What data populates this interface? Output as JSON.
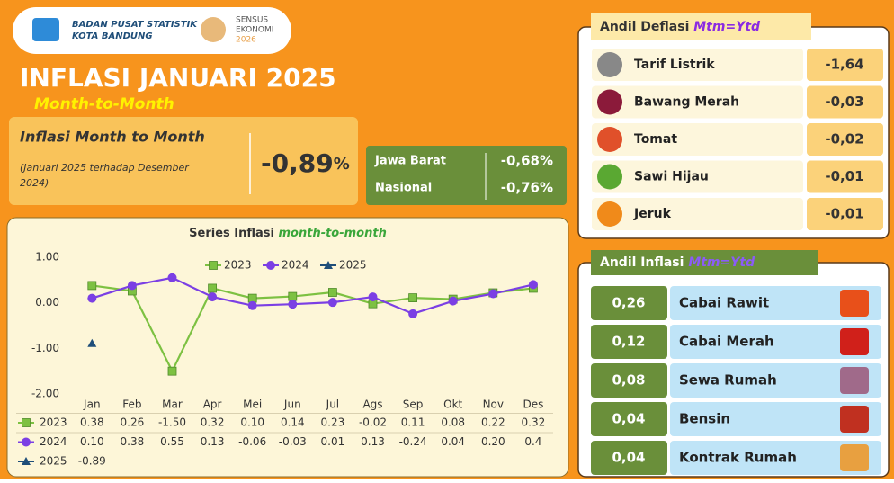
{
  "header": {
    "org": "BADAN PUSAT STATISTIK",
    "city": "KOTA BANDUNG",
    "census_1": "SENSUS",
    "census_2": "EKONOMI",
    "census_3": "2026"
  },
  "title": "INFLASI JANUARI 2025",
  "subtitle": "Month-to-Month",
  "mtm": {
    "label": "Inflasi Month to Month",
    "note_1": "(Januari 2025 terhadap Desember",
    "note_2": "2024)",
    "value": "-0,89",
    "unit": "%"
  },
  "comparison": [
    {
      "name": "Jawa Barat",
      "value": "-0,68%"
    },
    {
      "name": "Nasional",
      "value": "-0,76%"
    }
  ],
  "deflasi": {
    "title": "Andil Deflasi",
    "highlight": "Mtm=Ytd",
    "items": [
      {
        "name": "Tarif Listrik",
        "value": "-1,64"
      },
      {
        "name": "Bawang Merah",
        "value": "-0,03"
      },
      {
        "name": "Tomat",
        "value": "-0,02"
      },
      {
        "name": "Sawi Hijau",
        "value": "-0,01"
      },
      {
        "name": "Jeruk",
        "value": "-0,01"
      }
    ]
  },
  "inflasi": {
    "title": "Andil Inflasi",
    "highlight": "Mtm=Ytd",
    "items": [
      {
        "name": "Cabai Rawit",
        "value": "0,26"
      },
      {
        "name": "Cabai Merah",
        "value": "0,12"
      },
      {
        "name": "Sewa Rumah",
        "value": "0,08"
      },
      {
        "name": "Bensin",
        "value": "0,04"
      },
      {
        "name": "Kontrak Rumah",
        "value": "0,04"
      }
    ]
  },
  "chart_data": {
    "type": "line",
    "title": "Series Inflasi",
    "title_emphasis": "month-to-month",
    "categories": [
      "Jan",
      "Feb",
      "Mar",
      "Apr",
      "Mei",
      "Jun",
      "Jul",
      "Ags",
      "Sep",
      "Okt",
      "Nov",
      "Des"
    ],
    "series": [
      {
        "name": "2023",
        "color": "#7dc142",
        "marker": "square",
        "values": [
          0.38,
          0.26,
          -1.5,
          0.32,
          0.1,
          0.14,
          0.23,
          -0.02,
          0.11,
          0.08,
          0.22,
          0.32
        ],
        "value_labels": [
          "0.38",
          "0.26",
          "-1.50",
          "0.32",
          "0.10",
          "0.14",
          "0.23",
          "-0.02",
          "0.11",
          "0.08",
          "0.22",
          "0.32"
        ]
      },
      {
        "name": "2024",
        "color": "#7b3fe4",
        "marker": "circle",
        "values": [
          0.1,
          0.38,
          0.55,
          0.13,
          -0.06,
          -0.03,
          0.01,
          0.13,
          -0.24,
          0.04,
          0.2,
          0.4
        ],
        "value_labels": [
          "0.10",
          "0.38",
          "0.55",
          "0.13",
          "-0.06",
          "-0.03",
          "0.01",
          "0.13",
          "-0.24",
          "0.04",
          "0.20",
          "0.4"
        ]
      },
      {
        "name": "2025",
        "color": "#1f4e79",
        "marker": "triangle",
        "values": [
          -0.89,
          null,
          null,
          null,
          null,
          null,
          null,
          null,
          null,
          null,
          null,
          null
        ],
        "value_labels": [
          "-0.89",
          null,
          null,
          null,
          null,
          null,
          null,
          null,
          null,
          null,
          null,
          null
        ]
      }
    ],
    "ylim": [
      -2,
      1
    ],
    "yticks": [
      {
        "value": 1,
        "label": "1.00"
      },
      {
        "value": 0,
        "label": "0.00"
      },
      {
        "value": -1,
        "label": "-1.00"
      },
      {
        "value": -2,
        "label": "-2.00"
      }
    ],
    "grid": false,
    "legend": "top"
  }
}
